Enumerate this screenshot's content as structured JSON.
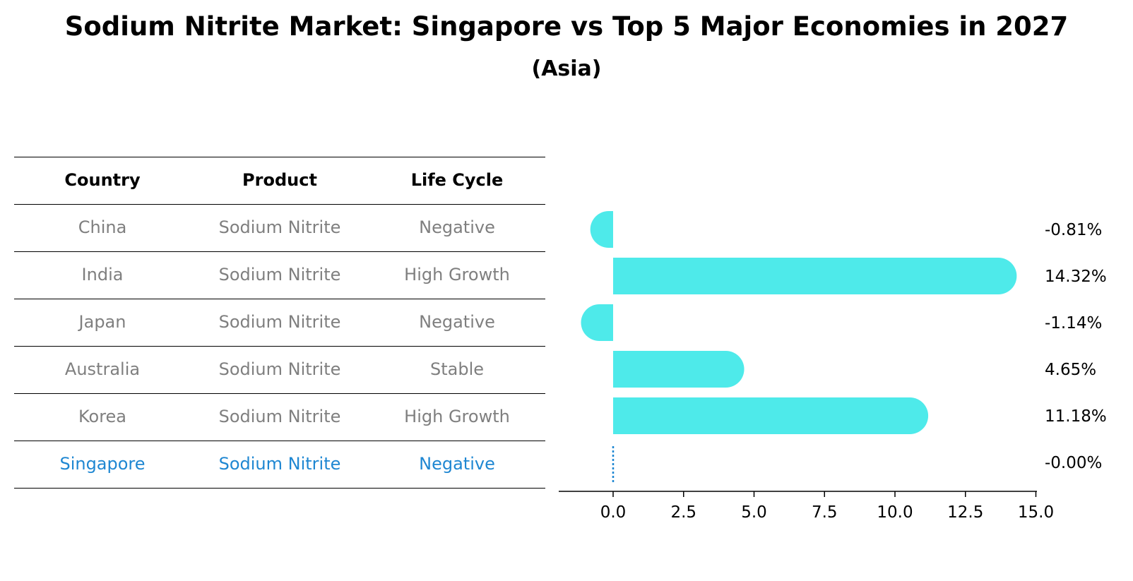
{
  "title": "Sodium Nitrite Market: Singapore vs Top 5 Major Economies in 2027",
  "subtitle": "(Asia)",
  "table": {
    "headers": [
      "Country",
      "Product",
      "Life Cycle"
    ],
    "rows": [
      {
        "country": "China",
        "product": "Sodium Nitrite",
        "life_cycle": "Negative",
        "highlight": false
      },
      {
        "country": "India",
        "product": "Sodium Nitrite",
        "life_cycle": "High Growth",
        "highlight": false
      },
      {
        "country": "Japan",
        "product": "Sodium Nitrite",
        "life_cycle": "Negative",
        "highlight": false
      },
      {
        "country": "Australia",
        "product": "Sodium Nitrite",
        "life_cycle": "Stable",
        "highlight": false
      },
      {
        "country": "Korea",
        "product": "Sodium Nitrite",
        "life_cycle": "High Growth",
        "highlight": false
      },
      {
        "country": "Singapore",
        "product": "Sodium Nitrite",
        "life_cycle": "Negative",
        "highlight": true
      }
    ]
  },
  "colors": {
    "bar": "#4eeaea",
    "highlight": "#1f87d2",
    "muted": "#7f7f7f"
  },
  "chart_data": {
    "type": "bar",
    "orientation": "horizontal",
    "categories": [
      "China",
      "India",
      "Japan",
      "Australia",
      "Korea",
      "Singapore"
    ],
    "values": [
      -0.81,
      14.32,
      -1.14,
      4.65,
      11.18,
      -0.0
    ],
    "value_labels": [
      "-0.81%",
      "14.32%",
      "-1.14%",
      "4.65%",
      "11.18%",
      "-0.00%"
    ],
    "xlim": [
      -1.9,
      15.0
    ],
    "xticks": [
      "0.0",
      "2.5",
      "5.0",
      "7.5",
      "10.0",
      "12.5",
      "15.0"
    ],
    "xtick_values": [
      0,
      2.5,
      5,
      7.5,
      10,
      12.5,
      15
    ],
    "grid": false,
    "title": "",
    "xlabel": "",
    "ylabel": ""
  }
}
